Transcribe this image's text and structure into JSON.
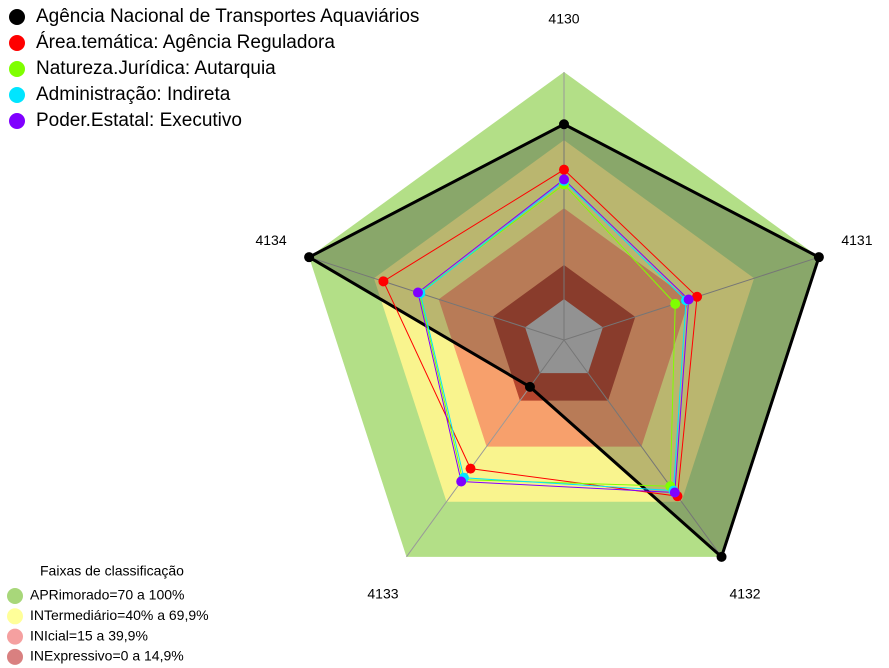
{
  "chart_data": {
    "type": "radar",
    "categories": [
      "4130",
      "4131",
      "4132",
      "4133",
      "4134"
    ],
    "rlim": [
      -18,
      100
    ],
    "legend_title": "Faixas de classificação",
    "bands": [
      {
        "name": "APRimorado=70 a 100%",
        "from": 70,
        "to": 100,
        "color": "#b3df87",
        "legend_color": "#a8d77a"
      },
      {
        "name": "INTermediário=40% a 69,9%",
        "from": 40,
        "to": 70,
        "color": "#f9f48e",
        "legend_color": "#ffff99"
      },
      {
        "name": "INIcial=15 a 39,9%",
        "from": 15,
        "to": 40,
        "color": "#f7a06c",
        "legend_color": "#f5a0a0"
      },
      {
        "name": "INExpressivo=0 a 14,9%",
        "from": 0,
        "to": 15,
        "color": "#b4452e",
        "legend_color": "#d98080"
      }
    ],
    "center_color": "#c0c0c0",
    "series": [
      {
        "name": "Agência Nacional de Transportes Aquaviários",
        "color": "#000000",
        "line_width": 3,
        "fill": "rgba(40,40,40,0.3)",
        "values": [
          77,
          100,
          100,
          7.5,
          100
        ]
      },
      {
        "name": "Área.temática: Agência Reguladora",
        "color": "#ff0000",
        "line_width": 1,
        "values": [
          57,
          43.6,
          67,
          52,
          65.6
        ]
      },
      {
        "name": "Natureza.Jurídica: Autarquia",
        "color": "#7fff00",
        "line_width": 1,
        "values": [
          50.5,
          33.5,
          61.6,
          58,
          49
        ]
      },
      {
        "name": "Administração: Indireta",
        "color": "#00e5ff",
        "line_width": 1,
        "values": [
          52,
          38.5,
          64,
          57,
          48.5
        ]
      },
      {
        "name": "Poder.Estatal: Executivo",
        "color": "#8000ff",
        "line_width": 1,
        "values": [
          52.7,
          39.7,
          65,
          59,
          49.6
        ]
      }
    ]
  }
}
